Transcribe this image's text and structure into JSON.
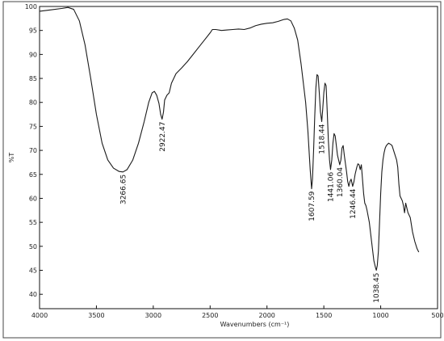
{
  "chart_data": {
    "type": "line",
    "title": "",
    "xlabel": "Wavenumbers (cm⁻¹)",
    "ylabel": "%T",
    "xlim": [
      4000,
      500
    ],
    "ylim": [
      37,
      100
    ],
    "x_reversed": true,
    "grid": false,
    "x_ticks": [
      4000,
      3500,
      3000,
      2500,
      2000,
      1500,
      1000,
      500
    ],
    "x_tick_labels": [
      "4000",
      "3500",
      "3000",
      "2500",
      "2000",
      "1500",
      "1000",
      "500"
    ],
    "y_ticks": [
      40,
      45,
      50,
      55,
      60,
      65,
      70,
      75,
      80,
      85,
      90,
      95,
      100
    ],
    "y_tick_labels": [
      "40",
      "45",
      "50",
      "55",
      "60",
      "65",
      "70",
      "75",
      "80",
      "85",
      "90",
      "95",
      "100"
    ],
    "series": [
      {
        "color": "#1a1a1a",
        "points": [
          [
            4000,
            99.0
          ],
          [
            3900,
            99.3
          ],
          [
            3800,
            99.6
          ],
          [
            3750,
            99.8
          ],
          [
            3700,
            99.4
          ],
          [
            3650,
            97.0
          ],
          [
            3600,
            92.0
          ],
          [
            3550,
            85.0
          ],
          [
            3500,
            77.5
          ],
          [
            3450,
            71.5
          ],
          [
            3400,
            68.0
          ],
          [
            3350,
            66.3
          ],
          [
            3300,
            65.6
          ],
          [
            3266.65,
            65.5
          ],
          [
            3230,
            66.0
          ],
          [
            3180,
            68.0
          ],
          [
            3130,
            71.5
          ],
          [
            3080,
            76.0
          ],
          [
            3040,
            80.0
          ],
          [
            3010,
            82.0
          ],
          [
            2990,
            82.3
          ],
          [
            2970,
            81.5
          ],
          [
            2950,
            79.8
          ],
          [
            2935,
            77.5
          ],
          [
            2922.47,
            76.5
          ],
          [
            2910,
            78.0
          ],
          [
            2900,
            80.5
          ],
          [
            2880,
            81.5
          ],
          [
            2860,
            82.0
          ],
          [
            2840,
            84.0
          ],
          [
            2800,
            86.0
          ],
          [
            2750,
            87.2
          ],
          [
            2700,
            88.5
          ],
          [
            2650,
            90.0
          ],
          [
            2600,
            91.5
          ],
          [
            2550,
            93.0
          ],
          [
            2500,
            94.5
          ],
          [
            2480,
            95.2
          ],
          [
            2450,
            95.2
          ],
          [
            2400,
            95.0
          ],
          [
            2350,
            95.1
          ],
          [
            2300,
            95.2
          ],
          [
            2250,
            95.3
          ],
          [
            2200,
            95.2
          ],
          [
            2150,
            95.5
          ],
          [
            2100,
            96.0
          ],
          [
            2050,
            96.3
          ],
          [
            2000,
            96.5
          ],
          [
            1950,
            96.6
          ],
          [
            1900,
            96.9
          ],
          [
            1850,
            97.3
          ],
          [
            1820,
            97.4
          ],
          [
            1790,
            97.0
          ],
          [
            1760,
            95.5
          ],
          [
            1730,
            93.0
          ],
          [
            1700,
            88.0
          ],
          [
            1680,
            84.0
          ],
          [
            1660,
            80.0
          ],
          [
            1640,
            74.0
          ],
          [
            1620,
            66.0
          ],
          [
            1607.59,
            62.0
          ],
          [
            1600,
            64.0
          ],
          [
            1590,
            70.0
          ],
          [
            1580,
            77.0
          ],
          [
            1570,
            83.0
          ],
          [
            1560,
            85.8
          ],
          [
            1550,
            85.5
          ],
          [
            1540,
            82.0
          ],
          [
            1530,
            78.0
          ],
          [
            1518.44,
            76.0
          ],
          [
            1510,
            78.5
          ],
          [
            1500,
            82.0
          ],
          [
            1490,
            84.0
          ],
          [
            1480,
            83.5
          ],
          [
            1470,
            78.0
          ],
          [
            1460,
            72.0
          ],
          [
            1450,
            68.0
          ],
          [
            1441.06,
            66.0
          ],
          [
            1430,
            68.0
          ],
          [
            1420,
            71.5
          ],
          [
            1410,
            73.5
          ],
          [
            1400,
            73.0
          ],
          [
            1390,
            71.0
          ],
          [
            1380,
            69.0
          ],
          [
            1370,
            68.0
          ],
          [
            1360.04,
            67.0
          ],
          [
            1350,
            68.0
          ],
          [
            1340,
            70.5
          ],
          [
            1330,
            71.0
          ],
          [
            1320,
            69.0
          ],
          [
            1300,
            65.5
          ],
          [
            1290,
            63.5
          ],
          [
            1280,
            62.5
          ],
          [
            1270,
            63.5
          ],
          [
            1260,
            64.0
          ],
          [
            1246.44,
            62.5
          ],
          [
            1235,
            63.5
          ],
          [
            1225,
            65.0
          ],
          [
            1210,
            66.5
          ],
          [
            1200,
            67.2
          ],
          [
            1190,
            67.0
          ],
          [
            1180,
            66.0
          ],
          [
            1170,
            67.0
          ],
          [
            1160,
            64.0
          ],
          [
            1150,
            61.0
          ],
          [
            1140,
            59.0
          ],
          [
            1130,
            58.5
          ],
          [
            1120,
            57.5
          ],
          [
            1100,
            55.0
          ],
          [
            1080,
            51.0
          ],
          [
            1060,
            47.0
          ],
          [
            1045,
            45.5
          ],
          [
            1038.45,
            45.0
          ],
          [
            1030,
            46.0
          ],
          [
            1020,
            49.0
          ],
          [
            1010,
            55.0
          ],
          [
            1000,
            61.0
          ],
          [
            990,
            65.5
          ],
          [
            980,
            68.0
          ],
          [
            970,
            69.5
          ],
          [
            960,
            70.5
          ],
          [
            950,
            71.0
          ],
          [
            930,
            71.5
          ],
          [
            910,
            71.2
          ],
          [
            900,
            71.0
          ],
          [
            880,
            69.5
          ],
          [
            860,
            68.0
          ],
          [
            850,
            66.5
          ],
          [
            840,
            63.0
          ],
          [
            830,
            60.5
          ],
          [
            820,
            60.0
          ],
          [
            810,
            59.5
          ],
          [
            800,
            58.5
          ],
          [
            790,
            57.0
          ],
          [
            780,
            59.0
          ],
          [
            770,
            58.0
          ],
          [
            760,
            57.0
          ],
          [
            740,
            56.0
          ],
          [
            720,
            53.0
          ],
          [
            700,
            51.0
          ],
          [
            680,
            49.5
          ],
          [
            665,
            48.8
          ]
        ]
      }
    ],
    "annotations": [
      {
        "x": 3266.65,
        "y": 65.5,
        "label": "3266.65"
      },
      {
        "x": 2922.47,
        "y": 76.5,
        "label": "2922.47"
      },
      {
        "x": 1607.59,
        "y": 62.0,
        "label": "1607.59"
      },
      {
        "x": 1518.44,
        "y": 76.0,
        "label": "1518.44"
      },
      {
        "x": 1441.06,
        "y": 66.0,
        "label": "1441.06"
      },
      {
        "x": 1360.04,
        "y": 67.0,
        "label": "1360.04"
      },
      {
        "x": 1246.44,
        "y": 62.5,
        "label": "1246.44"
      },
      {
        "x": 1038.45,
        "y": 45.0,
        "label": "1038.45"
      }
    ]
  }
}
